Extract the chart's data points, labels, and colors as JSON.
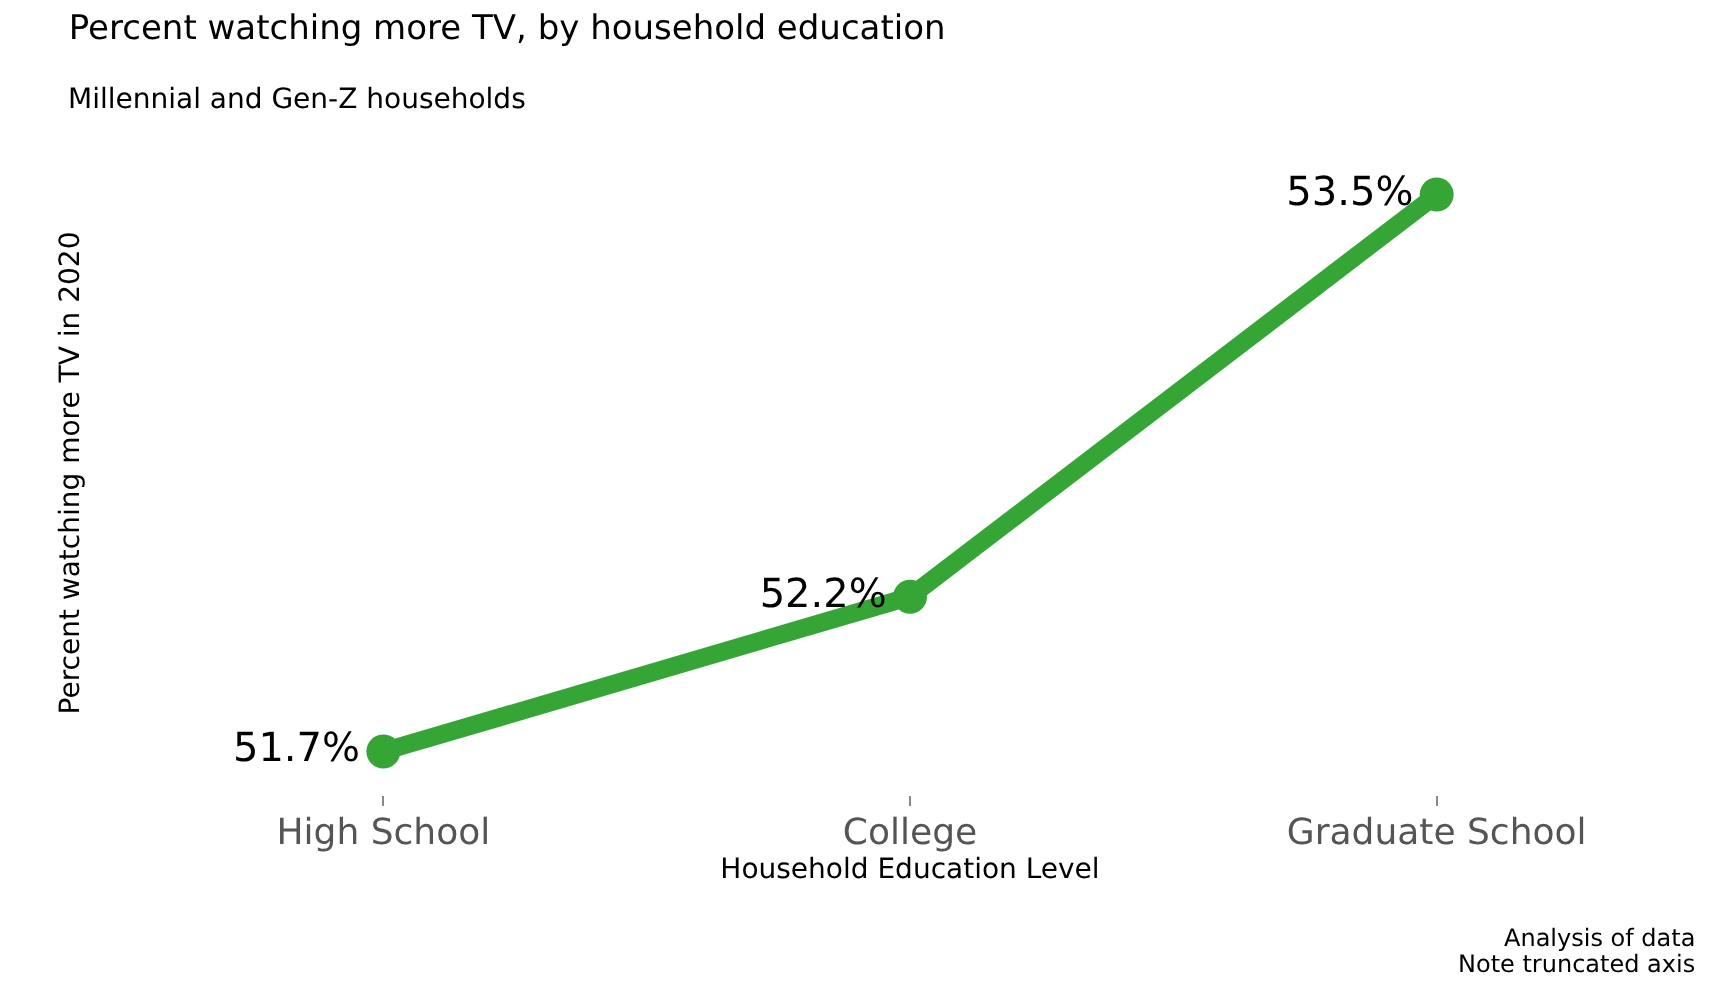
{
  "chart_data": {
    "type": "line",
    "title": "Percent watching more TV, by household education",
    "subtitle": "Millennial and Gen-Z households",
    "xlabel": "Household Education Level",
    "ylabel": "Percent watching more TV in 2020",
    "categories": [
      "High School",
      "College",
      "Graduate School"
    ],
    "series": [
      {
        "color": "#35a635",
        "values": [
          51.7,
          52.2,
          53.5
        ],
        "value_labels": [
          "51.7%",
          "52.2%",
          "53.5%"
        ]
      }
    ],
    "annotations": [
      "Analysis of data",
      "Note truncated axis"
    ],
    "marker": "circle",
    "line_style": "solid",
    "tick_labels": "x"
  }
}
